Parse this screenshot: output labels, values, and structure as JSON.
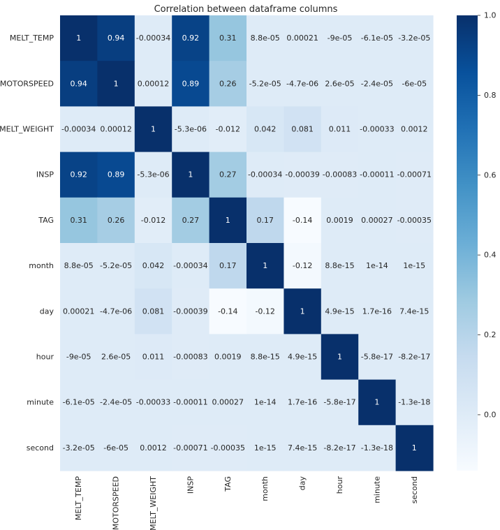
{
  "chart_data": {
    "type": "heatmap",
    "title": "Correlation between dataframe columns",
    "labels": [
      "MELT_TEMP",
      "MOTORSPEED",
      "MELT_WEIGHT",
      "INSP",
      "TAG",
      "month",
      "day",
      "hour",
      "minute",
      "second"
    ],
    "values": [
      [
        1,
        0.94,
        -0.00034,
        0.92,
        0.31,
        8.8e-05,
        0.00021,
        -9e-05,
        -6.1e-05,
        -3.2e-05
      ],
      [
        0.94,
        1,
        0.00012,
        0.89,
        0.26,
        -5.2e-05,
        -4.7e-06,
        2.6e-05,
        -2.4e-05,
        -6e-05
      ],
      [
        -0.00034,
        0.00012,
        1,
        -5.3e-06,
        -0.012,
        0.042,
        0.081,
        0.011,
        -0.00033,
        0.0012
      ],
      [
        0.92,
        0.89,
        -5.3e-06,
        1,
        0.27,
        -0.00034,
        -0.00039,
        -0.00083,
        -0.00011,
        -0.00071
      ],
      [
        0.31,
        0.26,
        -0.012,
        0.27,
        1,
        0.17,
        -0.14,
        0.0019,
        0.00027,
        -0.00035
      ],
      [
        8.8e-05,
        -5.2e-05,
        0.042,
        -0.00034,
        0.17,
        1,
        -0.12,
        8.8e-15,
        1e-14,
        1e-15
      ],
      [
        0.00021,
        -4.7e-06,
        0.081,
        -0.00039,
        -0.14,
        -0.12,
        1,
        4.9e-15,
        1.7e-16,
        7.4e-15
      ],
      [
        -9e-05,
        2.6e-05,
        0.011,
        -0.00083,
        0.0019,
        8.8e-15,
        4.9e-15,
        1,
        -5.8e-17,
        -8.2e-17
      ],
      [
        -6.1e-05,
        -2.4e-05,
        -0.00033,
        -0.00011,
        0.00027,
        1e-14,
        1.7e-16,
        -5.8e-17,
        1,
        -1.3e-18
      ],
      [
        -3.2e-05,
        -6e-05,
        0.0012,
        -0.00071,
        -0.00035,
        1e-15,
        7.4e-15,
        -8.2e-17,
        -1.3e-18,
        1
      ]
    ],
    "annotations": [
      [
        "1",
        "0.94",
        "-0.00034",
        "0.92",
        "0.31",
        "8.8e-05",
        "0.00021",
        "-9e-05",
        "-6.1e-05",
        "-3.2e-05"
      ],
      [
        "0.94",
        "1",
        "0.00012",
        "0.89",
        "0.26",
        "-5.2e-05",
        "-4.7e-06",
        "2.6e-05",
        "-2.4e-05",
        "-6e-05"
      ],
      [
        "-0.00034",
        "0.00012",
        "1",
        "-5.3e-06",
        "-0.012",
        "0.042",
        "0.081",
        "0.011",
        "-0.00033",
        "0.0012"
      ],
      [
        "0.92",
        "0.89",
        "-5.3e-06",
        "1",
        "0.27",
        "-0.00034",
        "-0.00039",
        "-0.00083",
        "-0.00011",
        "-0.00071"
      ],
      [
        "0.31",
        "0.26",
        "-0.012",
        "0.27",
        "1",
        "0.17",
        "-0.14",
        "0.0019",
        "0.00027",
        "-0.00035"
      ],
      [
        "8.8e-05",
        "-5.2e-05",
        "0.042",
        "-0.00034",
        "0.17",
        "1",
        "-0.12",
        "8.8e-15",
        "1e-14",
        "1e-15"
      ],
      [
        "0.00021",
        "-4.7e-06",
        "0.081",
        "-0.00039",
        "-0.14",
        "-0.12",
        "1",
        "4.9e-15",
        "1.7e-16",
        "7.4e-15"
      ],
      [
        "-9e-05",
        "2.6e-05",
        "0.011",
        "-0.00083",
        "0.0019",
        "8.8e-15",
        "4.9e-15",
        "1",
        "-5.8e-17",
        "-8.2e-17"
      ],
      [
        "-6.1e-05",
        "-2.4e-05",
        "-0.00033",
        "-0.00011",
        "0.00027",
        "1e-14",
        "1.7e-16",
        "-5.8e-17",
        "1",
        "-1.3e-18"
      ],
      [
        "-3.2e-05",
        "-6e-05",
        "0.0012",
        "-0.00071",
        "-0.00035",
        "1e-15",
        "7.4e-15",
        "-8.2e-17",
        "-1.3e-18",
        "1"
      ]
    ],
    "colormap": "Blues",
    "vmin": -0.14,
    "vmax": 1,
    "colorbar": {
      "ticks": [
        0.0,
        0.2,
        0.4,
        0.6,
        0.8,
        1.0
      ],
      "tick_labels": [
        "0.0",
        "0.2",
        "0.4",
        "0.6",
        "0.8",
        "1.0"
      ],
      "location": "right"
    },
    "xlabel": "",
    "ylabel": ""
  },
  "colors": {
    "blues": [
      "#f7fbff",
      "#deebf7",
      "#c6dbef",
      "#9ecae1",
      "#6baed6",
      "#4292c6",
      "#2171b5",
      "#08519c",
      "#08306b"
    ],
    "text_dark": "#262626",
    "text_light": "#ffffff"
  }
}
